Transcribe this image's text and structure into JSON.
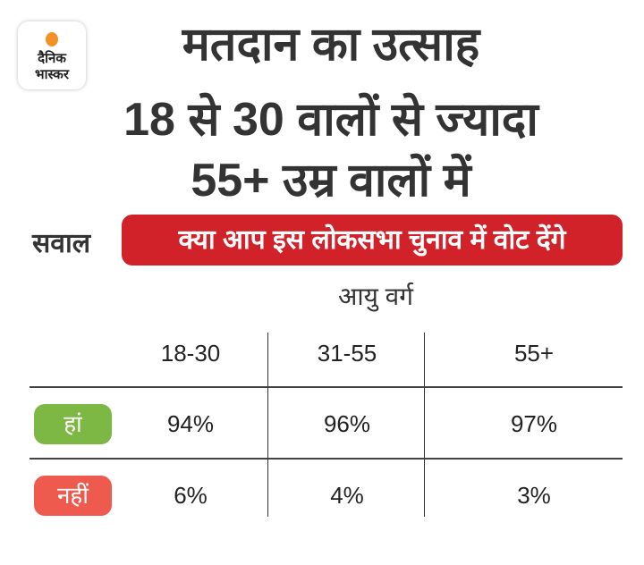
{
  "logo": {
    "line1": "दैनिक",
    "line2": "भास्कर"
  },
  "title": {
    "lines": [
      "मतदान का उत्साह",
      "18 से 30 वालों से ज्यादा",
      "55+ उम्र वालों में"
    ]
  },
  "question": {
    "label": "सवाल",
    "text": "क्या आप इस लोकसभा चुनाव में वोट देंगे"
  },
  "colors": {
    "question_bg": "#d12129",
    "yes": "#7cb843",
    "no": "#ef5a4f",
    "logo_sun": "#f29126"
  },
  "chart_data": {
    "type": "table",
    "column_group_label": "आयु वर्ग",
    "columns": [
      "18-30",
      "31-55",
      "55+"
    ],
    "rows": [
      {
        "label": "हां",
        "values": [
          "94%",
          "96%",
          "97%"
        ]
      },
      {
        "label": "नहीं",
        "values": [
          "6%",
          "4%",
          "3%"
        ]
      }
    ]
  }
}
